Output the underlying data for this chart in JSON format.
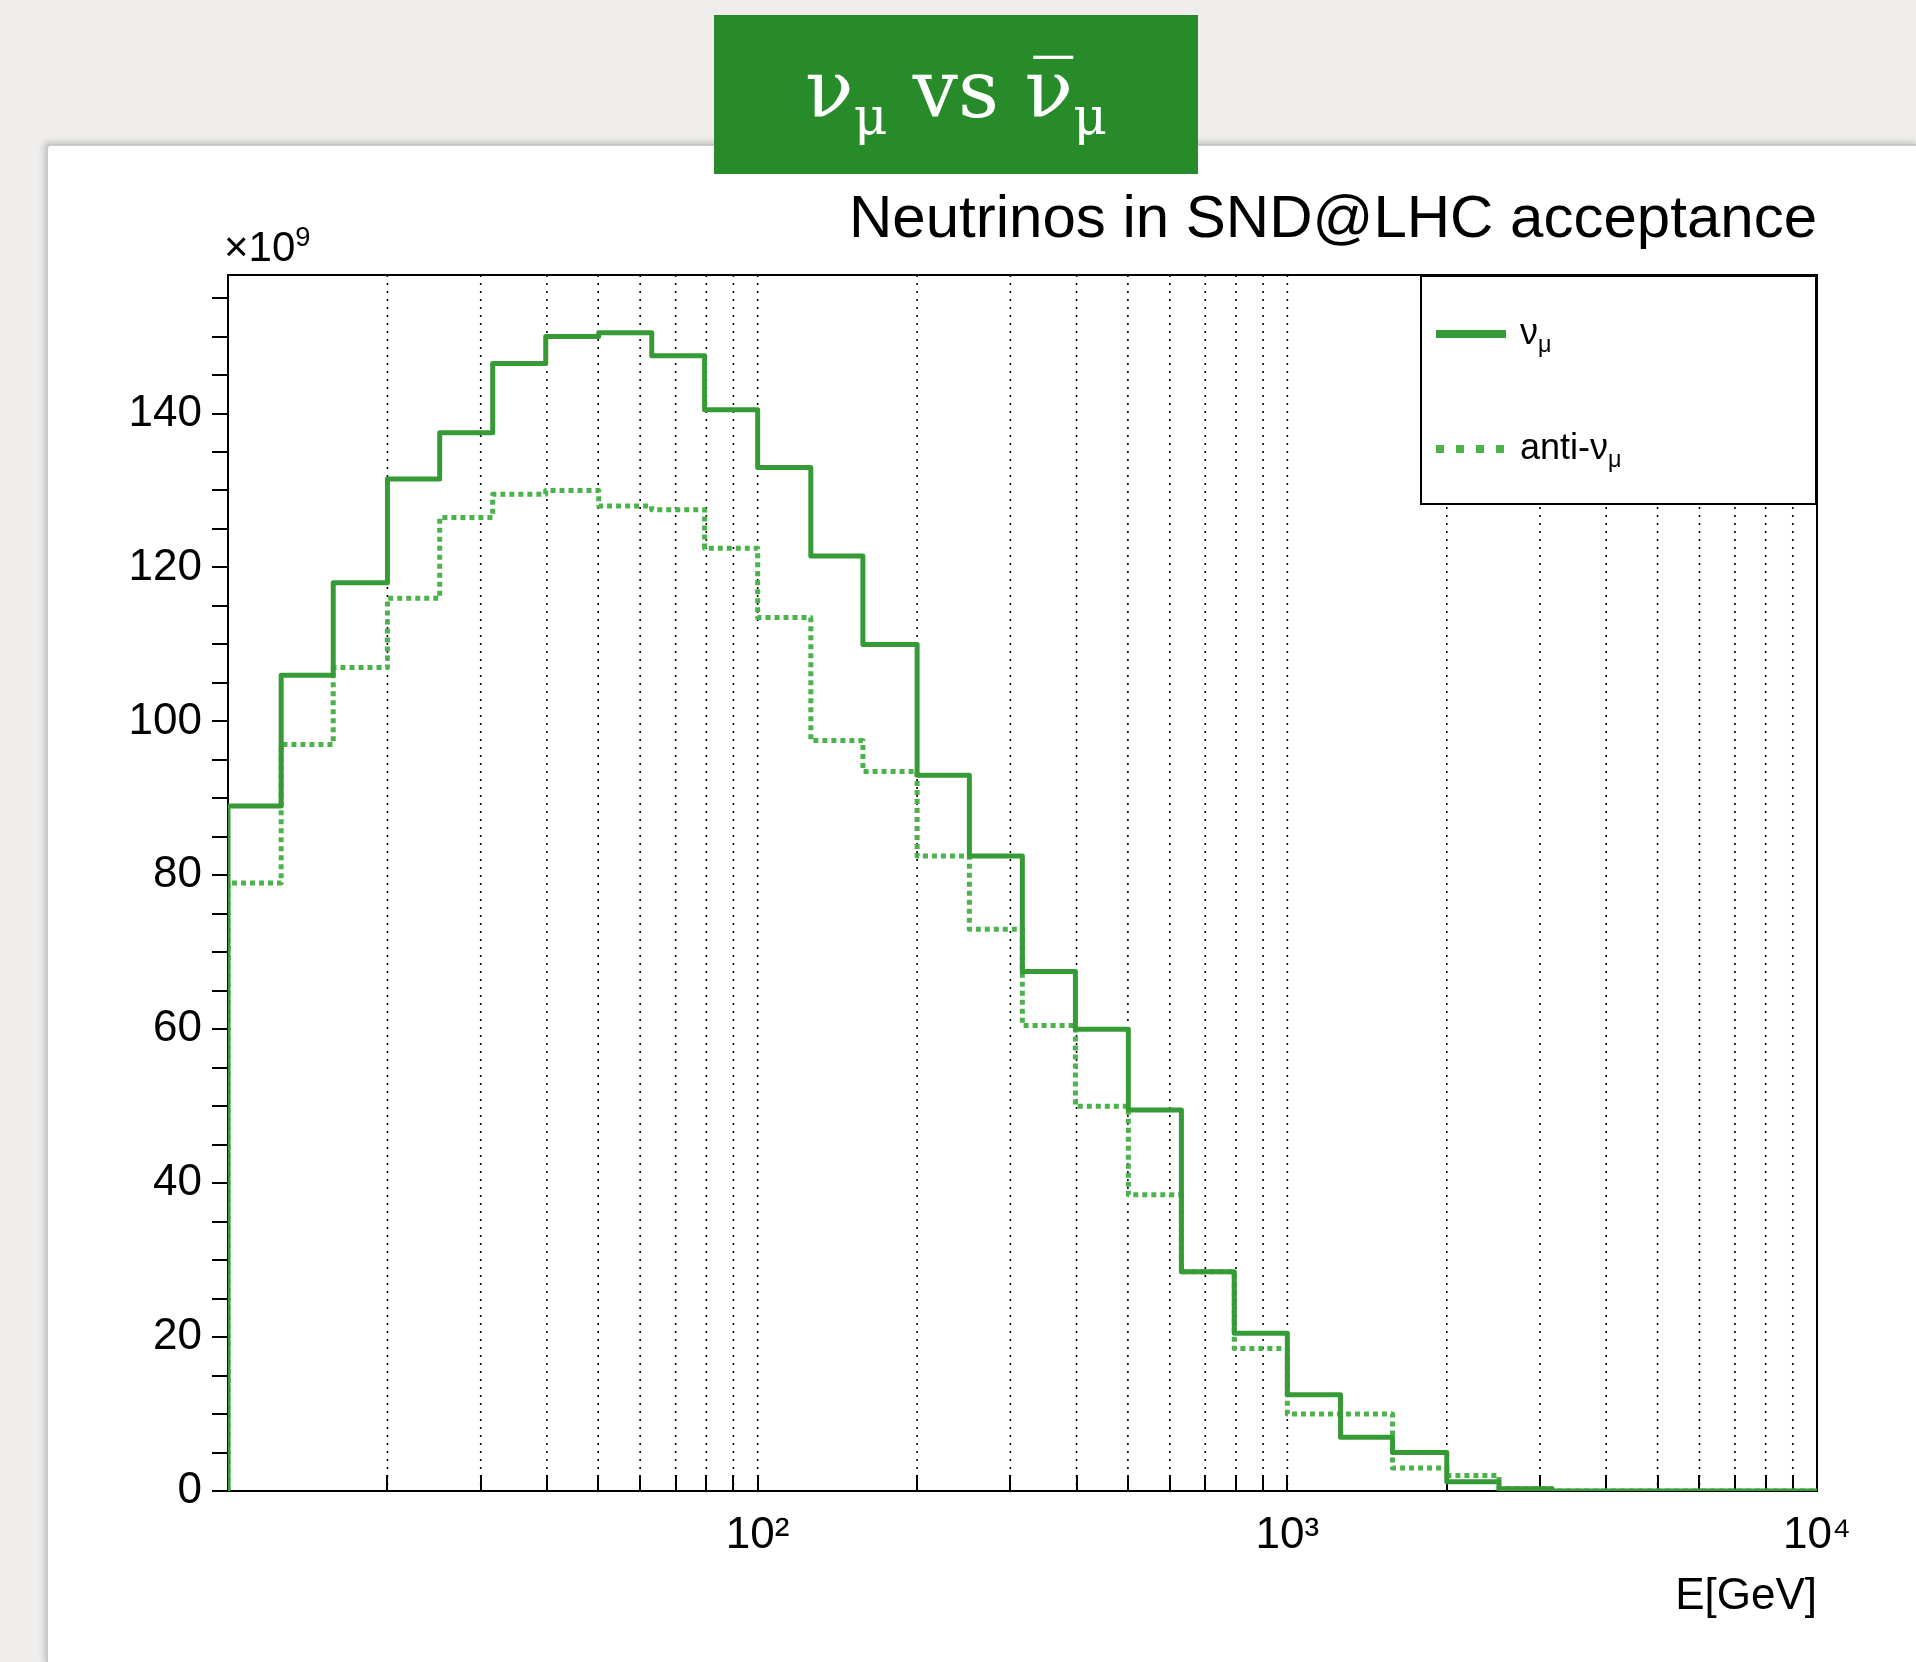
{
  "chart_data": {
    "type": "histogram",
    "title": "ν$_{μ}$ vs ν̅$_{μ}$",
    "subtitle": "Neutrinos in SND@LHC acceptance",
    "xlabel": "E[GeV]",
    "ylabel": "×10$^{9}$",
    "bins": [
      10,
      12.6,
      15.8,
      20,
      25.1,
      31.6,
      39.8,
      50.1,
      63.1,
      79.4,
      100,
      126,
      158,
      200,
      251,
      316,
      398,
      501,
      631,
      794,
      1000,
      1260,
      1580,
      2000,
      2510,
      3160,
      3980,
      5010,
      6310,
      7940,
      10000
    ],
    "series": [
      {
        "name": "ν$_{μ}$",
        "color": "#369a36",
        "line_style": "solid",
        "values": [
          89,
          106,
          118,
          131.5,
          137.5,
          146.5,
          150,
          150.5,
          147.5,
          140.5,
          133,
          121.5,
          110,
          93,
          82.5,
          67.5,
          60,
          49.5,
          28.5,
          20.5,
          12.5,
          7,
          5,
          1.2,
          0.3,
          0,
          0,
          0,
          0,
          0
        ]
      },
      {
        "name": "anti-ν$_{μ}$",
        "color": "#4cb24c",
        "line_style": "dotted",
        "values": [
          79,
          97,
          107,
          116,
          126.5,
          129.5,
          130,
          128,
          127.5,
          122.5,
          113.5,
          97.5,
          93.5,
          82.5,
          73,
          60.5,
          50,
          38.5,
          28.5,
          18.5,
          10,
          10,
          3,
          2,
          0.3,
          0,
          0,
          0,
          0,
          0
        ]
      }
    ],
    "log": "x",
    "xlim": [
      10,
      10000
    ],
    "xticks": [
      {
        "value": 20,
        "label": null
      },
      {
        "value": 30,
        "label": null
      },
      {
        "value": 40,
        "label": null
      },
      {
        "value": 50,
        "label": null
      },
      {
        "value": 60,
        "label": null
      },
      {
        "value": 70,
        "label": null
      },
      {
        "value": 80,
        "label": null
      },
      {
        "value": 90,
        "label": null
      },
      {
        "value": 100,
        "label": "10²"
      },
      {
        "value": 200,
        "label": null
      },
      {
        "value": 300,
        "label": null
      },
      {
        "value": 400,
        "label": null
      },
      {
        "value": 500,
        "label": null
      },
      {
        "value": 600,
        "label": null
      },
      {
        "value": 700,
        "label": null
      },
      {
        "value": 800,
        "label": null
      },
      {
        "value": 900,
        "label": null
      },
      {
        "value": 1000,
        "label": "10³"
      },
      {
        "value": 2000,
        "label": null
      },
      {
        "value": 3000,
        "label": null
      },
      {
        "value": 4000,
        "label": null
      },
      {
        "value": 5000,
        "label": null
      },
      {
        "value": 6000,
        "label": null
      },
      {
        "value": 7000,
        "label": null
      },
      {
        "value": 8000,
        "label": null
      },
      {
        "value": 9000,
        "label": null
      },
      {
        "value": 10000,
        "label": "10⁴"
      }
    ],
    "ylim": [
      0,
      158
    ],
    "yticks": [
      0,
      {
        "value": 5,
        "label": null
      },
      {
        "value": 10,
        "label": null
      },
      {
        "value": 15,
        "label": null
      },
      20,
      {
        "value": 25,
        "label": null
      },
      {
        "value": 30,
        "label": null
      },
      {
        "value": 35,
        "label": null
      },
      40,
      {
        "value": 45,
        "label": null
      },
      {
        "value": 50,
        "label": null
      },
      {
        "value": 55,
        "label": null
      },
      60,
      {
        "value": 65,
        "label": null
      },
      {
        "value": 70,
        "label": null
      },
      {
        "value": 75,
        "label": null
      },
      80,
      {
        "value": 85,
        "label": null
      },
      {
        "value": 90,
        "label": null
      },
      {
        "value": 95,
        "label": null
      },
      100,
      {
        "value": 105,
        "label": null
      },
      {
        "value": 110,
        "label": null
      },
      {
        "value": 115,
        "label": null
      },
      120,
      {
        "value": 125,
        "label": null
      },
      {
        "value": 130,
        "label": null
      },
      {
        "value": 135,
        "label": null
      },
      140,
      {
        "value": 145,
        "label": null
      },
      {
        "value": 150,
        "label": null
      },
      {
        "value": 155,
        "label": null
      }
    ],
    "grid": "x",
    "legend": "top right"
  }
}
